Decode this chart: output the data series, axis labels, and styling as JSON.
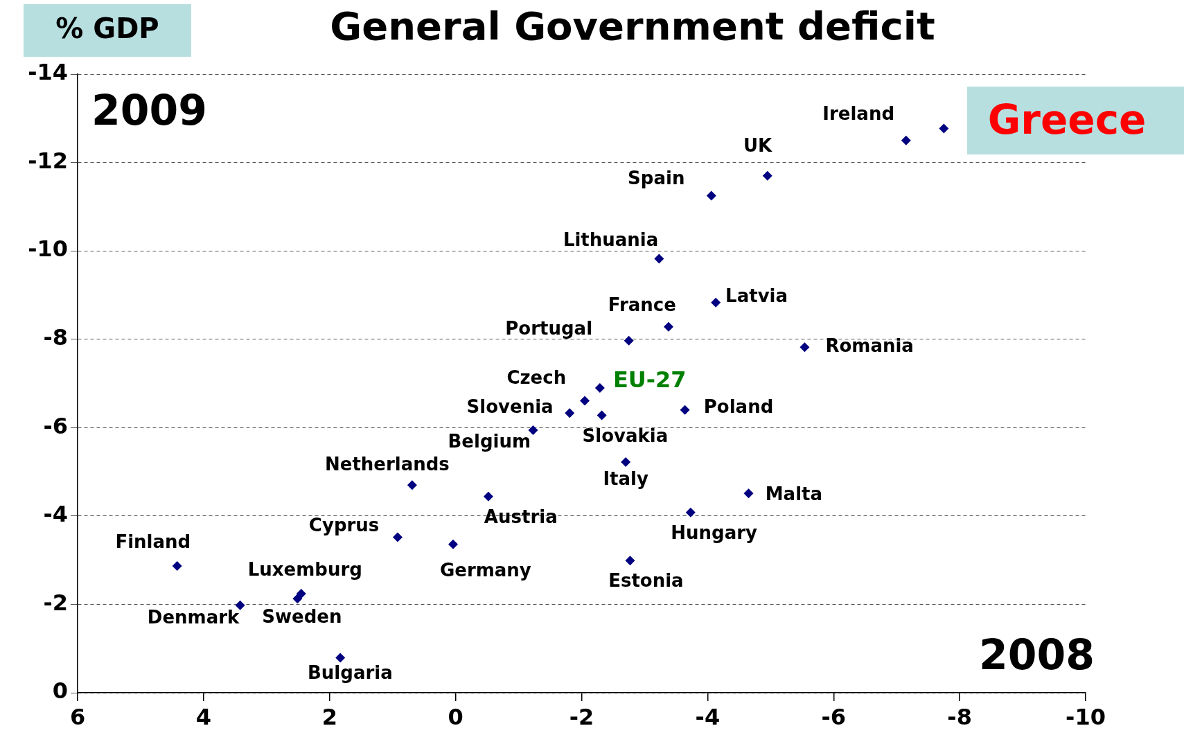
{
  "chart_data": {
    "type": "scatter",
    "title": "General Government deficit",
    "xlabel": "2008",
    "ylabel": "2009",
    "x": [
      -7.75,
      -7.15,
      -4.95,
      -4.06,
      -3.23,
      -4.13,
      -3.38,
      -2.75,
      -5.54,
      -2.29,
      -2.05,
      -1.81,
      -2.32,
      -3.64,
      -1.23,
      -2.7,
      0.69,
      -0.52,
      -4.65,
      -3.73,
      0.92,
      0.04,
      -2.77,
      4.42,
      2.45,
      2.51,
      3.42,
      1.83
    ],
    "series": [
      {
        "color": "#000080",
        "values": [
          -12.77,
          -12.5,
          -11.7,
          -11.25,
          -9.82,
          -8.83,
          -8.28,
          -7.97,
          -7.82,
          -6.9,
          -6.61,
          -6.33,
          -6.28,
          -6.4,
          -5.94,
          -5.22,
          -4.7,
          -4.44,
          -4.51,
          -4.08,
          -3.52,
          -3.36,
          -2.99,
          -2.87,
          -2.24,
          -2.13,
          -1.98,
          -0.79
        ]
      }
    ],
    "xlim": [
      6,
      -10
    ],
    "xticks": [
      6,
      4,
      2,
      0,
      -2,
      -4,
      -6,
      -8,
      -10
    ],
    "ylim": [
      0,
      -14
    ],
    "yticks": [
      0,
      -2,
      -4,
      -6,
      -8,
      -10,
      -12,
      -14
    ],
    "grid": "y",
    "legend": false,
    "marker": "diamond",
    "annotations": [
      "% GDP",
      {
        "text": "Greece",
        "x": -7.75,
        "y": -12.77
      },
      {
        "text": "Ireland",
        "x": -7.15,
        "y": -12.5
      },
      {
        "text": "UK",
        "x": -4.95,
        "y": -11.7
      },
      {
        "text": "Spain",
        "x": -4.06,
        "y": -11.25
      },
      {
        "text": "Lithuania",
        "x": -3.23,
        "y": -9.82
      },
      {
        "text": "Latvia",
        "x": -4.13,
        "y": -8.83
      },
      {
        "text": "France",
        "x": -3.38,
        "y": -8.28
      },
      {
        "text": "Portugal",
        "x": -2.75,
        "y": -7.97
      },
      {
        "text": "Romania",
        "x": -5.54,
        "y": -7.82
      },
      {
        "text": "EU-27",
        "x": -2.29,
        "y": -6.9
      },
      {
        "text": "Czech",
        "x": -2.05,
        "y": -6.61
      },
      {
        "text": "Slovenia",
        "x": -1.81,
        "y": -6.33
      },
      {
        "text": "Slovakia",
        "x": -2.32,
        "y": -6.28
      },
      {
        "text": "Poland",
        "x": -3.64,
        "y": -6.4
      },
      {
        "text": "Belgium",
        "x": -1.23,
        "y": -5.94
      },
      {
        "text": "Italy",
        "x": -2.7,
        "y": -5.22
      },
      {
        "text": "Netherlands",
        "x": 0.69,
        "y": -4.7
      },
      {
        "text": "Austria",
        "x": -0.52,
        "y": -4.44
      },
      {
        "text": "Malta",
        "x": -4.65,
        "y": -4.51
      },
      {
        "text": "Hungary",
        "x": -3.73,
        "y": -4.08
      },
      {
        "text": "Cyprus",
        "x": 0.92,
        "y": -3.52
      },
      {
        "text": "Germany",
        "x": 0.04,
        "y": -3.36
      },
      {
        "text": "Estonia",
        "x": -2.77,
        "y": -2.99
      },
      {
        "text": "Finland",
        "x": 4.42,
        "y": -2.87
      },
      {
        "text": "Luxemburg",
        "x": 2.45,
        "y": -2.24
      },
      {
        "text": "Sweden",
        "x": 2.51,
        "y": -2.13
      },
      {
        "text": "Denmark",
        "x": 3.42,
        "y": -1.98
      },
      {
        "text": "Bulgaria",
        "x": 1.83,
        "y": -0.79
      }
    ]
  }
}
